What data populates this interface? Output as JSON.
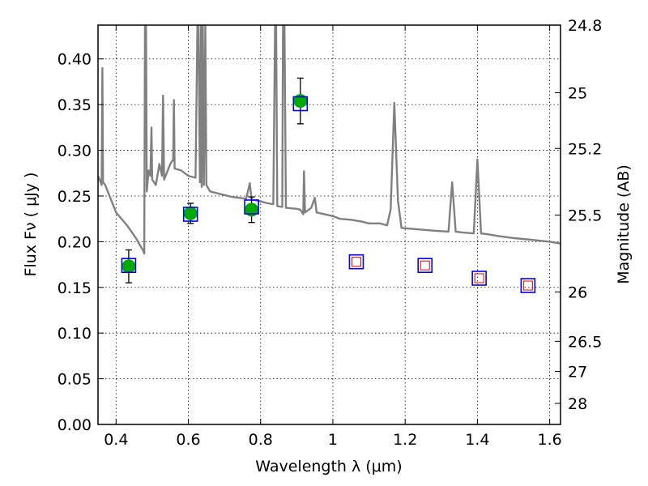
{
  "chart_data": {
    "type": "scatter",
    "xlabel": "Wavelength  λ (μm)",
    "ylabel": "Flux  Fν  ( μJy )",
    "y2label": "Magnitude (AB)",
    "xlim": [
      0.35,
      1.63
    ],
    "ylim": [
      0.0,
      0.437
    ],
    "xticks": [
      0.4,
      0.6,
      0.8,
      1.0,
      1.2,
      1.4,
      1.6
    ],
    "xtick_labels": [
      "0.4",
      "0.6",
      "0.8",
      "1",
      "1.2",
      "1.4",
      "1.6"
    ],
    "yticks": [
      0.0,
      0.05,
      0.1,
      0.15,
      0.2,
      0.25,
      0.3,
      0.35,
      0.4
    ],
    "ytick_labels": [
      "0.00",
      "0.05",
      "0.10",
      "0.15",
      "0.20",
      "0.25",
      "0.30",
      "0.35",
      "0.40"
    ],
    "y2ticks": [
      {
        "label": "24.8",
        "flux": 0.437
      },
      {
        "label": "25",
        "flux": 0.363
      },
      {
        "label": "25.2",
        "flux": 0.302
      },
      {
        "label": "25.5",
        "flux": 0.229
      },
      {
        "label": "26",
        "flux": 0.145
      },
      {
        "label": "26.5",
        "flux": 0.091
      },
      {
        "label": "27",
        "flux": 0.058
      },
      {
        "label": "28",
        "flux": 0.023
      }
    ],
    "grid": true,
    "series": [
      {
        "role": "model-sed",
        "style": "line",
        "color": "#808080",
        "points": [
          [
            0.35,
            0.272
          ],
          [
            0.36,
            0.262
          ],
          [
            0.362,
            0.39
          ],
          [
            0.364,
            0.265
          ],
          [
            0.37,
            0.262
          ],
          [
            0.4,
            0.232
          ],
          [
            0.43,
            0.218
          ],
          [
            0.455,
            0.204
          ],
          [
            0.475,
            0.19
          ],
          [
            0.478,
            0.187
          ],
          [
            0.48,
            0.437
          ],
          [
            0.483,
            0.437
          ],
          [
            0.485,
            0.255
          ],
          [
            0.49,
            0.278
          ],
          [
            0.495,
            0.272
          ],
          [
            0.498,
            0.325
          ],
          [
            0.5,
            0.268
          ],
          [
            0.51,
            0.262
          ],
          [
            0.52,
            0.285
          ],
          [
            0.527,
            0.272
          ],
          [
            0.53,
            0.36
          ],
          [
            0.533,
            0.268
          ],
          [
            0.55,
            0.285
          ],
          [
            0.558,
            0.29
          ],
          [
            0.56,
            0.355
          ],
          [
            0.562,
            0.28
          ],
          [
            0.58,
            0.278
          ],
          [
            0.6,
            0.272
          ],
          [
            0.62,
            0.27
          ],
          [
            0.625,
            0.437
          ],
          [
            0.628,
            0.437
          ],
          [
            0.632,
            0.265
          ],
          [
            0.635,
            0.437
          ],
          [
            0.637,
            0.26
          ],
          [
            0.64,
            0.437
          ],
          [
            0.643,
            0.262
          ],
          [
            0.647,
            0.437
          ],
          [
            0.65,
            0.262
          ],
          [
            0.66,
            0.255
          ],
          [
            0.68,
            0.253
          ],
          [
            0.7,
            0.251
          ],
          [
            0.72,
            0.249
          ],
          [
            0.74,
            0.248
          ],
          [
            0.76,
            0.247
          ],
          [
            0.77,
            0.264
          ],
          [
            0.775,
            0.246
          ],
          [
            0.79,
            0.245
          ],
          [
            0.8,
            0.244
          ],
          [
            0.82,
            0.242
          ],
          [
            0.835,
            0.241
          ],
          [
            0.84,
            0.437
          ],
          [
            0.843,
            0.437
          ],
          [
            0.846,
            0.239
          ],
          [
            0.86,
            0.238
          ],
          [
            0.862,
            0.437
          ],
          [
            0.866,
            0.437
          ],
          [
            0.87,
            0.237
          ],
          [
            0.9,
            0.236
          ],
          [
            0.91,
            0.235
          ],
          [
            0.918,
            0.23
          ],
          [
            0.92,
            0.277
          ],
          [
            0.923,
            0.232
          ],
          [
            0.94,
            0.237
          ],
          [
            0.95,
            0.248
          ],
          [
            0.955,
            0.232
          ],
          [
            1.0,
            0.228
          ],
          [
            1.02,
            0.225
          ],
          [
            1.05,
            0.224
          ],
          [
            1.08,
            0.222
          ],
          [
            1.1,
            0.22
          ],
          [
            1.13,
            0.22
          ],
          [
            1.15,
            0.218
          ],
          [
            1.16,
            0.235
          ],
          [
            1.17,
            0.352
          ],
          [
            1.18,
            0.245
          ],
          [
            1.19,
            0.215
          ],
          [
            1.22,
            0.214
          ],
          [
            1.25,
            0.213
          ],
          [
            1.28,
            0.212
          ],
          [
            1.32,
            0.211
          ],
          [
            1.33,
            0.265
          ],
          [
            1.34,
            0.211
          ],
          [
            1.36,
            0.21
          ],
          [
            1.39,
            0.209
          ],
          [
            1.4,
            0.29
          ],
          [
            1.41,
            0.209
          ],
          [
            1.43,
            0.208
          ],
          [
            1.46,
            0.206
          ],
          [
            1.5,
            0.204
          ],
          [
            1.55,
            0.202
          ],
          [
            1.6,
            0.2
          ],
          [
            1.63,
            0.198
          ]
        ]
      },
      {
        "role": "observed",
        "style": "marker",
        "color": "#00aa00",
        "marker": "circle",
        "points": [
          {
            "x": 0.435,
            "y": 0.173,
            "yerr": 0.018
          },
          {
            "x": 0.606,
            "y": 0.231,
            "yerr": 0.011
          },
          {
            "x": 0.775,
            "y": 0.235,
            "yerr": 0.014
          },
          {
            "x": 0.91,
            "y": 0.354,
            "yerr": 0.025
          }
        ]
      },
      {
        "role": "model-photometry",
        "style": "marker",
        "color": "#0000ee",
        "marker": "square",
        "points": [
          {
            "x": 0.435,
            "y": 0.174
          },
          {
            "x": 0.606,
            "y": 0.23
          },
          {
            "x": 0.775,
            "y": 0.238
          },
          {
            "x": 0.91,
            "y": 0.351
          },
          {
            "x": 1.065,
            "y": 0.178
          },
          {
            "x": 1.255,
            "y": 0.174
          },
          {
            "x": 1.405,
            "y": 0.16
          },
          {
            "x": 1.54,
            "y": 0.152
          }
        ]
      },
      {
        "role": "predicted-nir",
        "style": "marker",
        "color": "#dd0000",
        "marker": "square",
        "points": [
          {
            "x": 1.065,
            "y": 0.178
          },
          {
            "x": 1.255,
            "y": 0.174
          },
          {
            "x": 1.405,
            "y": 0.16
          },
          {
            "x": 1.54,
            "y": 0.152
          }
        ]
      }
    ]
  }
}
